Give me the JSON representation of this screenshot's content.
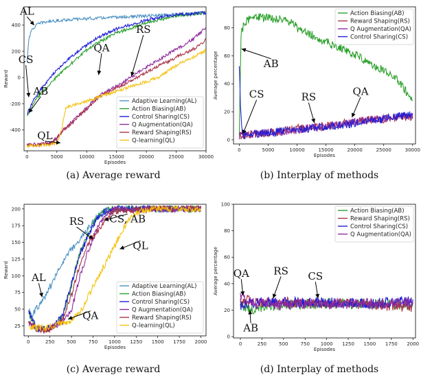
{
  "colors": {
    "AL": "#4a90c2",
    "AB": "#2ca02c",
    "CS": "#1f1fd6",
    "QA": "#8e2a9e",
    "RS": "#a83246",
    "QL": "#f4c20d"
  },
  "chart_data": [
    {
      "id": "a",
      "type": "line",
      "caption": "(a)  Average reward",
      "xlabel": "Episodes",
      "ylabel": "Reward",
      "xlim": [
        -500,
        30000
      ],
      "ylim": [
        -560,
        540
      ],
      "xticks": [
        0,
        5000,
        10000,
        15000,
        20000,
        25000,
        30000
      ],
      "yticks": [
        -400,
        -200,
        0,
        200,
        400
      ],
      "legend": "lower-right",
      "noise": 12,
      "series": [
        {
          "key": "AL",
          "name": "Adaptive Learning(AL)",
          "x": [
            0,
            300,
            800,
            1500,
            2500,
            4000,
            6000,
            10000,
            15000,
            20000,
            25000,
            30000
          ],
          "y": [
            120,
            300,
            360,
            400,
            420,
            430,
            440,
            450,
            460,
            470,
            480,
            495
          ]
        },
        {
          "key": "AB",
          "name": "Action Biasing(AB)",
          "x": [
            0,
            1000,
            2000,
            4000,
            6000,
            8000,
            10000,
            12000,
            15000,
            20000,
            25000,
            30000
          ],
          "y": [
            -290,
            -200,
            -140,
            -40,
            50,
            130,
            210,
            270,
            340,
            420,
            470,
            495
          ]
        },
        {
          "key": "CS",
          "name": "Control Sharing(CS)",
          "x": [
            0,
            1000,
            2000,
            4000,
            6000,
            8000,
            10000,
            12000,
            15000,
            20000,
            25000,
            30000
          ],
          "y": [
            -280,
            -180,
            -110,
            10,
            100,
            180,
            250,
            310,
            370,
            440,
            480,
            495
          ]
        },
        {
          "key": "QA",
          "name": "Q Augmentation(QA)",
          "x": [
            0,
            2000,
            4000,
            5000,
            6000,
            8000,
            10000,
            12000,
            14000,
            16000,
            18000,
            20000,
            22000,
            24000,
            26000,
            28000,
            30000
          ],
          "y": [
            -510,
            -510,
            -500,
            -460,
            -400,
            -320,
            -230,
            -140,
            -90,
            -40,
            20,
            80,
            130,
            190,
            240,
            300,
            380
          ]
        },
        {
          "key": "RS",
          "name": "Reward Shaping(RS)",
          "x": [
            0,
            2000,
            4000,
            5000,
            6000,
            8000,
            10000,
            12000,
            14000,
            16000,
            18000,
            20000,
            22000,
            24000,
            26000,
            28000,
            30000
          ],
          "y": [
            -515,
            -515,
            -505,
            -470,
            -410,
            -330,
            -240,
            -150,
            -100,
            -60,
            -10,
            40,
            90,
            130,
            180,
            220,
            290
          ]
        },
        {
          "key": "QL",
          "name": "Q-learning(QL)",
          "x": [
            0,
            2000,
            4000,
            5000,
            5800,
            6500,
            8000,
            10000,
            12000,
            14000,
            16000,
            18000,
            20000,
            22000,
            24000,
            26000,
            28000,
            30000
          ],
          "y": [
            -520,
            -520,
            -510,
            -500,
            -400,
            -230,
            -210,
            -180,
            -150,
            -120,
            -90,
            -60,
            -30,
            0,
            60,
            120,
            160,
            210
          ]
        }
      ],
      "annotations": [
        {
          "text": "AL",
          "tx": 0,
          "ty": 480,
          "ax": 1200,
          "ay": 400
        },
        {
          "text": "CS",
          "tx": -200,
          "ty": 110,
          "ax": 300,
          "ay": -150
        },
        {
          "text": "AB",
          "tx": 2300,
          "ty": -130,
          "ax": 300,
          "ay": -270
        },
        {
          "text": "QA",
          "tx": 12500,
          "ty": 200,
          "ax": 12000,
          "ay": 20
        },
        {
          "text": "RS",
          "tx": 19500,
          "ty": 340,
          "ax": 17500,
          "ay": 10
        },
        {
          "text": "QL",
          "tx": 3000,
          "ty": -470,
          "ax": 5600,
          "ay": -500
        }
      ]
    },
    {
      "id": "b",
      "type": "line",
      "caption": "(b)  Interplay of methods",
      "xlabel": "Episodes",
      "ylabel": "Average percentage",
      "xlim": [
        -1000,
        30500
      ],
      "ylim": [
        -3,
        95
      ],
      "xticks": [
        0,
        5000,
        10000,
        15000,
        20000,
        25000,
        30000
      ],
      "yticks": [
        0,
        20,
        40,
        60,
        80
      ],
      "legend": "top-right",
      "noise": 3,
      "series": [
        {
          "key": "AB",
          "name": "Action Biasing(AB)",
          "x": [
            0,
            300,
            800,
            1500,
            3000,
            5000,
            7000,
            9000,
            10000,
            12000,
            14000,
            16000,
            18000,
            20000,
            22000,
            24000,
            26000,
            28000,
            30000
          ],
          "y": [
            5,
            75,
            83,
            86,
            88,
            87,
            86,
            84,
            80,
            76,
            72,
            68,
            65,
            61,
            56,
            52,
            47,
            40,
            28
          ]
        },
        {
          "key": "RS",
          "name": "Reward Shaping(RS)",
          "x": [
            0,
            2000,
            5000,
            10000,
            15000,
            20000,
            25000,
            30000
          ],
          "y": [
            3,
            4,
            5,
            8,
            10,
            13,
            15,
            17
          ]
        },
        {
          "key": "QA",
          "name": "Q Augmentation(QA)",
          "x": [
            0,
            2000,
            5000,
            10000,
            15000,
            20000,
            25000,
            30000
          ],
          "y": [
            3,
            4,
            5,
            7,
            10,
            13,
            15,
            17
          ]
        },
        {
          "key": "CS",
          "name": "Control Sharing(CS)",
          "x": [
            0,
            150,
            400,
            700,
            2000,
            5000,
            10000,
            15000,
            20000,
            25000,
            30000
          ],
          "y": [
            55,
            30,
            8,
            3,
            4,
            5,
            7,
            9,
            12,
            15,
            18
          ]
        }
      ],
      "annotations": [
        {
          "text": "AB",
          "tx": 5500,
          "ty": 52,
          "ax": 400,
          "ay": 65
        },
        {
          "text": "CS",
          "tx": 3000,
          "ty": 30,
          "ax": 600,
          "ay": 4
        },
        {
          "text": "RS",
          "tx": 12000,
          "ty": 28,
          "ax": 13000,
          "ay": 12
        },
        {
          "text": "QA",
          "tx": 21000,
          "ty": 32,
          "ax": 19500,
          "ay": 16
        }
      ]
    },
    {
      "id": "c",
      "type": "line",
      "caption": "(c)  Average reward",
      "xlabel": "Episodes",
      "ylabel": "Reward",
      "xlim": [
        -50,
        2060
      ],
      "ylim": [
        10,
        207
      ],
      "xticks": [
        0,
        250,
        500,
        750,
        1000,
        1250,
        1500,
        1750,
        2000
      ],
      "yticks": [
        25,
        50,
        75,
        100,
        125,
        150,
        175,
        200
      ],
      "legend": "lower-right",
      "noise": 5,
      "series": [
        {
          "key": "AL",
          "name": "Adaptive Learning(AL)",
          "x": [
            0,
            50,
            100,
            150,
            200,
            300,
            400,
            500,
            600,
            700,
            800,
            900,
            1000,
            1500,
            2000
          ],
          "y": [
            48,
            42,
            52,
            60,
            70,
            95,
            120,
            140,
            155,
            172,
            188,
            197,
            200,
            200,
            200
          ]
        },
        {
          "key": "AB",
          "name": "Action Biasing(AB)",
          "x": [
            0,
            100,
            200,
            300,
            350,
            400,
            500,
            600,
            700,
            800,
            900,
            1000,
            1500,
            2000
          ],
          "y": [
            45,
            20,
            20,
            25,
            32,
            40,
            85,
            135,
            165,
            190,
            198,
            200,
            200,
            200
          ]
        },
        {
          "key": "CS",
          "name": "Control Sharing(CS)",
          "x": [
            0,
            100,
            200,
            300,
            400,
            500,
            600,
            700,
            800,
            900,
            1000,
            1500,
            2000
          ],
          "y": [
            48,
            22,
            20,
            25,
            42,
            90,
            132,
            162,
            188,
            197,
            200,
            200,
            200
          ]
        },
        {
          "key": "QA",
          "name": "Q Augmentation(QA)",
          "x": [
            0,
            100,
            200,
            300,
            400,
            500,
            600,
            700,
            800,
            900,
            1000,
            1500,
            2000
          ],
          "y": [
            32,
            20,
            20,
            25,
            32,
            48,
            100,
            140,
            170,
            192,
            199,
            200,
            200
          ]
        },
        {
          "key": "RS",
          "name": "Reward Shaping(RS)",
          "x": [
            0,
            100,
            200,
            300,
            400,
            500,
            600,
            700,
            800,
            900,
            1000,
            1500,
            2000
          ],
          "y": [
            30,
            18,
            18,
            24,
            35,
            70,
            120,
            150,
            168,
            185,
            197,
            200,
            200
          ]
        },
        {
          "key": "QL",
          "name": "Q-learning(QL)",
          "x": [
            0,
            100,
            200,
            300,
            400,
            500,
            600,
            700,
            800,
            900,
            1000,
            1100,
            1200,
            1300,
            1500,
            2000
          ],
          "y": [
            25,
            22,
            22,
            27,
            30,
            33,
            45,
            70,
            95,
            120,
            145,
            170,
            188,
            198,
            200,
            200
          ]
        }
      ],
      "annotations": [
        {
          "text": "AL",
          "tx": 120,
          "ty": 92,
          "ax": 160,
          "ay": 68
        },
        {
          "text": "RS",
          "tx": 560,
          "ty": 176,
          "ax": 750,
          "ay": 155
        },
        {
          "text": "CS, AB",
          "tx": 1150,
          "ty": 180,
          "ax": 880,
          "ay": 183
        },
        {
          "text": "QL",
          "tx": 1300,
          "ty": 140,
          "ax": 1060,
          "ay": 140
        },
        {
          "text": "QA",
          "tx": 720,
          "ty": 35,
          "ax": 460,
          "ay": 35
        }
      ]
    },
    {
      "id": "d",
      "type": "line",
      "caption": "(d)  Interplay of methods",
      "xlabel": "Episodes",
      "ylabel": "Average percentage",
      "xlim": [
        -80,
        2030
      ],
      "ylim": [
        -1,
        100
      ],
      "xticks": [
        0,
        250,
        500,
        750,
        1000,
        1250,
        1500,
        1750,
        2000
      ],
      "yticks": [
        0,
        20,
        40,
        60,
        80,
        100
      ],
      "legend": "top-right",
      "noise": 4,
      "series": [
        {
          "key": "AB",
          "name": "Action Biasing(AB)",
          "x": [
            0,
            100,
            200,
            500,
            1000,
            1500,
            2000
          ],
          "y": [
            25,
            20,
            22,
            24,
            25,
            25,
            24
          ]
        },
        {
          "key": "RS",
          "name": "Reward Shaping(RS)",
          "x": [
            0,
            100,
            200,
            500,
            1000,
            1500,
            2000
          ],
          "y": [
            26,
            28,
            25,
            26,
            25,
            24,
            22
          ]
        },
        {
          "key": "CS",
          "name": "Control Sharing(CS)",
          "x": [
            0,
            100,
            200,
            500,
            1000,
            1500,
            2000
          ],
          "y": [
            22,
            25,
            26,
            26,
            26,
            25,
            27
          ]
        },
        {
          "key": "QA",
          "name": "Q Augmentation(QA)",
          "x": [
            0,
            100,
            200,
            500,
            1000,
            1500,
            2000
          ],
          "y": [
            30,
            27,
            25,
            24,
            25,
            25,
            26
          ]
        }
      ],
      "annotations": [
        {
          "text": "QA",
          "tx": 10,
          "ty": 45,
          "ax": 30,
          "ay": 31
        },
        {
          "text": "RS",
          "tx": 470,
          "ty": 47,
          "ax": 380,
          "ay": 29
        },
        {
          "text": "CS",
          "tx": 870,
          "ty": 43,
          "ax": 900,
          "ay": 29
        },
        {
          "text": "AB",
          "tx": 120,
          "ty": 4,
          "ax": 110,
          "ay": 20
        }
      ]
    }
  ]
}
